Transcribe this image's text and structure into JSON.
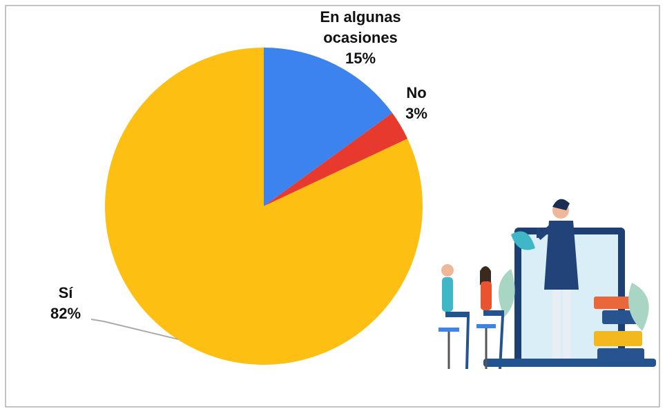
{
  "chart_data": {
    "type": "pie",
    "categories": [
      "En algunas ocasiones",
      "No",
      "Sí"
    ],
    "values": [
      15,
      3,
      82
    ],
    "value_labels": [
      "15%",
      "3%",
      "82%"
    ],
    "colors": [
      "#3c83ef",
      "#e8392f",
      "#fdbf12"
    ]
  }
}
